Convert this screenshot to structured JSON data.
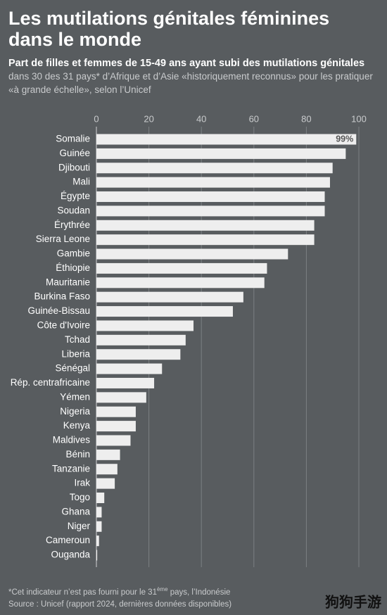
{
  "chart_data": {
    "type": "barh",
    "title": "Les mutilations génitales féminines dans le monde",
    "subtitle": "Part de filles et femmes de 15-49 ans ayant subi des mutilations génitales",
    "description": "dans 30 des 31 pays* d’Afrique et d’Asie «historiquement reconnus» pour les pratiquer «à grande échelle», selon l’Unicef",
    "categories": [
      "Somalie",
      "Guinée",
      "Djibouti",
      "Mali",
      "Égypte",
      "Soudan",
      "Érythrée",
      "Sierra Leone",
      "Gambie",
      "Éthiopie",
      "Mauritanie",
      "Burkina Faso",
      "Guinée-Bissau",
      "Côte d'Ivoire",
      "Tchad",
      "Liberia",
      "Sénégal",
      "Rép. centrafricaine",
      "Yémen",
      "Nigeria",
      "Kenya",
      "Maldives",
      "Bénin",
      "Tanzanie",
      "Irak",
      "Togo",
      "Ghana",
      "Niger",
      "Cameroun",
      "Ouganda"
    ],
    "values": [
      99,
      95,
      90,
      89,
      87,
      87,
      83,
      83,
      73,
      65,
      64,
      56,
      52,
      37,
      34,
      32,
      25,
      22,
      19,
      15,
      15,
      13,
      9,
      8,
      7,
      3,
      2,
      2,
      1,
      0.3
    ],
    "value_labels": [
      "99%",
      null,
      null,
      null,
      null,
      null,
      null,
      null,
      null,
      null,
      null,
      null,
      null,
      null,
      null,
      null,
      null,
      null,
      null,
      null,
      null,
      null,
      null,
      null,
      null,
      null,
      null,
      null,
      null,
      null
    ],
    "color": "#eeeeee",
    "xlim": [
      0,
      100
    ],
    "xticks": [
      0,
      20,
      40,
      60,
      80,
      100
    ],
    "grid": true,
    "footnote": {
      "before": "*Cet indicateur n’est pas fourni pour le 31",
      "sup": "ème",
      "after": " pays, l’Indonésie"
    },
    "source": "Source : Unicef (rapport 2024, dernières données disponibles)",
    "watermark": "狗狗手游"
  }
}
